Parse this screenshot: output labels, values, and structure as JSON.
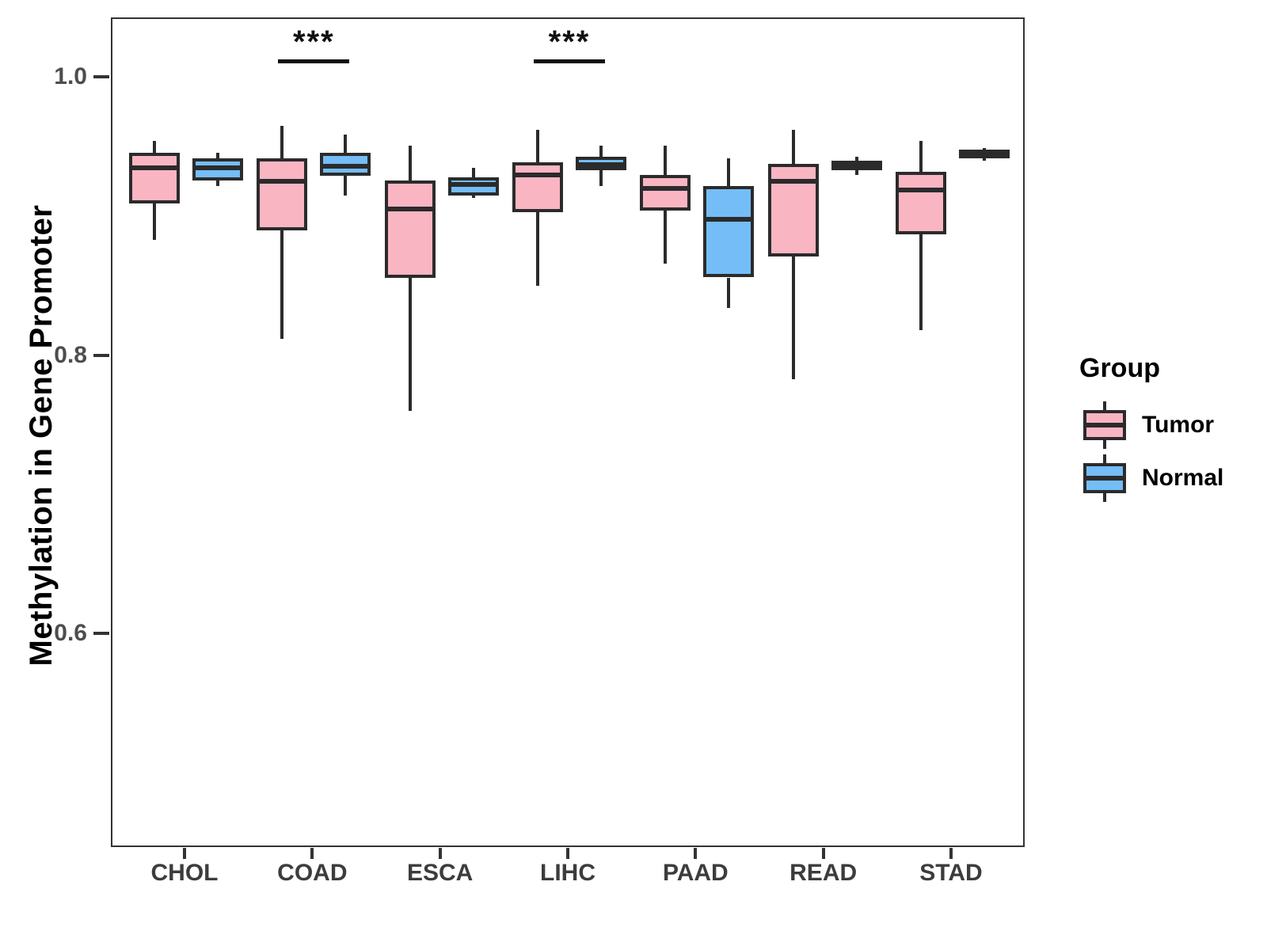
{
  "figure": {
    "y_axis_title": "Methylation in Gene Promoter",
    "colors": {
      "tumor_fill": "#FAB5C3",
      "normal_fill": "#74BDF7",
      "line": "#2B2B2B",
      "axis": "#333333",
      "tick_text": "#4D4D4D"
    }
  },
  "legend": {
    "title": "Group",
    "items": [
      {
        "label": "Tumor",
        "color": "#FAB5C3"
      },
      {
        "label": "Normal",
        "color": "#74BDF7"
      }
    ]
  },
  "chart_data": {
    "type": "boxplot",
    "title": "",
    "xlabel": "",
    "ylabel": "Methylation in Gene Promoter",
    "categories": [
      "CHOL",
      "COAD",
      "ESCA",
      "LIHC",
      "PAAD",
      "READ",
      "STAD"
    ],
    "groups": [
      "Tumor",
      "Normal"
    ],
    "y_ticks": {
      "values": [
        1.0,
        0.8,
        0.6
      ],
      "labels": [
        "1.0",
        "0.8",
        "0.6"
      ]
    },
    "ylim": [
      0.446,
      1.043
    ],
    "grid": false,
    "legend_position": "right",
    "series": [
      {
        "name": "Tumor",
        "fill": "#FAB5C3",
        "boxes": [
          {
            "category": "CHOL",
            "min": 0.884,
            "q1": 0.91,
            "median": 0.936,
            "q3": 0.947,
            "max": 0.955
          },
          {
            "category": "COAD",
            "min": 0.813,
            "q1": 0.891,
            "median": 0.926,
            "q3": 0.943,
            "max": 0.966
          },
          {
            "category": "ESCA",
            "min": 0.761,
            "q1": 0.857,
            "median": 0.906,
            "q3": 0.927,
            "max": 0.952
          },
          {
            "category": "LIHC",
            "min": 0.851,
            "q1": 0.904,
            "median": 0.931,
            "q3": 0.94,
            "max": 0.963
          },
          {
            "category": "PAAD",
            "min": 0.867,
            "q1": 0.905,
            "median": 0.921,
            "q3": 0.931,
            "max": 0.952
          },
          {
            "category": "READ",
            "min": 0.784,
            "q1": 0.872,
            "median": 0.926,
            "q3": 0.939,
            "max": 0.963
          },
          {
            "category": "STAD",
            "min": 0.819,
            "q1": 0.888,
            "median": 0.92,
            "q3": 0.933,
            "max": 0.955
          }
        ]
      },
      {
        "name": "Normal",
        "fill": "#74BDF7",
        "boxes": [
          {
            "category": "CHOL",
            "min": 0.923,
            "q1": 0.927,
            "median": 0.936,
            "q3": 0.943,
            "max": 0.947
          },
          {
            "category": "COAD",
            "min": 0.916,
            "q1": 0.93,
            "median": 0.937,
            "q3": 0.947,
            "max": 0.96
          },
          {
            "category": "ESCA",
            "min": 0.914,
            "q1": 0.916,
            "median": 0.924,
            "q3": 0.929,
            "max": 0.936
          },
          {
            "category": "LIHC",
            "min": 0.923,
            "q1": 0.934,
            "median": 0.938,
            "q3": 0.944,
            "max": 0.952
          },
          {
            "category": "PAAD",
            "min": 0.835,
            "q1": 0.857,
            "median": 0.899,
            "q3": 0.923,
            "max": 0.943
          },
          {
            "category": "READ",
            "min": 0.931,
            "q1": 0.934,
            "median": 0.938,
            "q3": 0.941,
            "max": 0.944
          },
          {
            "category": "STAD",
            "min": 0.941,
            "q1": 0.943,
            "median": 0.946,
            "q3": 0.949,
            "max": 0.95
          }
        ]
      }
    ],
    "annotations": [
      {
        "label": "***",
        "category": "COAD",
        "y": 1.014
      },
      {
        "label": "***",
        "category": "LIHC",
        "y": 1.014
      }
    ]
  }
}
